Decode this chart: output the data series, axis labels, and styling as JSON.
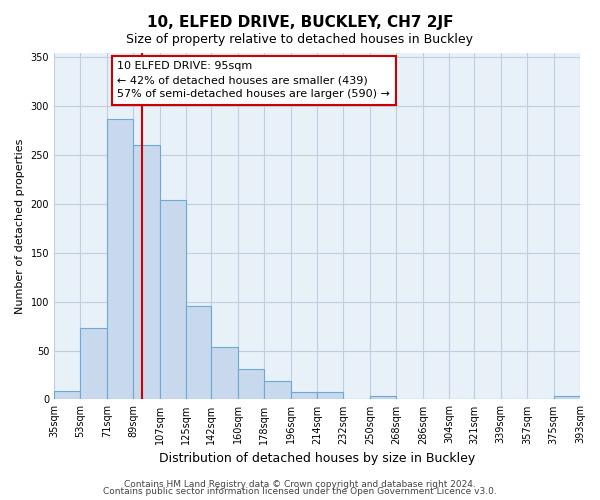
{
  "title": "10, ELFED DRIVE, BUCKLEY, CH7 2JF",
  "subtitle": "Size of property relative to detached houses in Buckley",
  "xlabel": "Distribution of detached houses by size in Buckley",
  "ylabel": "Number of detached properties",
  "bar_values": [
    9,
    73,
    287,
    260,
    204,
    96,
    54,
    31,
    19,
    8,
    8,
    0,
    4,
    0,
    0,
    0,
    0,
    0,
    0,
    3
  ],
  "bin_edges": [
    35,
    53,
    71,
    89,
    107,
    125,
    142,
    160,
    178,
    196,
    214,
    232,
    250,
    268,
    286,
    304,
    321,
    339,
    357,
    375,
    393
  ],
  "bin_labels": [
    "35sqm",
    "53sqm",
    "71sqm",
    "89sqm",
    "107sqm",
    "125sqm",
    "142sqm",
    "160sqm",
    "178sqm",
    "196sqm",
    "214sqm",
    "232sqm",
    "250sqm",
    "268sqm",
    "286sqm",
    "304sqm",
    "321sqm",
    "339sqm",
    "357sqm",
    "375sqm",
    "393sqm"
  ],
  "bar_color": "#c8d8ed",
  "bar_edge_color": "#6aaad4",
  "vline_x": 95,
  "vline_color": "#cc0000",
  "annotation_title": "10 ELFED DRIVE: 95sqm",
  "annotation_line1": "← 42% of detached houses are smaller (439)",
  "annotation_line2": "57% of semi-detached houses are larger (590) →",
  "annotation_box_edgecolor": "#cc0000",
  "ylim": [
    0,
    355
  ],
  "yticks": [
    0,
    50,
    100,
    150,
    200,
    250,
    300,
    350
  ],
  "footer1": "Contains HM Land Registry data © Crown copyright and database right 2024.",
  "footer2": "Contains public sector information licensed under the Open Government Licence v3.0.",
  "background_color": "#ffffff",
  "grid_color": "#c0cfe0",
  "title_fontsize": 11,
  "subtitle_fontsize": 9,
  "ylabel_fontsize": 8,
  "xlabel_fontsize": 9,
  "tick_fontsize": 7,
  "footer_fontsize": 6.5
}
